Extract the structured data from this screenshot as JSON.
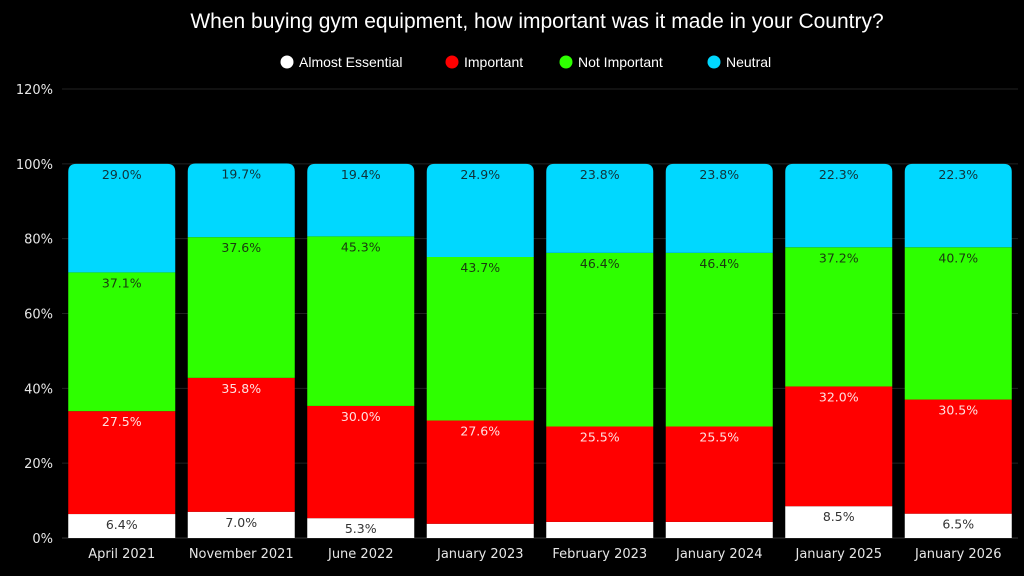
{
  "chart_data": {
    "type": "bar",
    "stacked": true,
    "title": "When buying gym equipment, how important was it made in your Country?",
    "xlabel": "",
    "ylabel": "",
    "ylim": [
      0,
      120
    ],
    "yticks": [
      0,
      20,
      40,
      60,
      80,
      100,
      120
    ],
    "ytick_labels": [
      "0%",
      "20%",
      "40%",
      "60%",
      "80%",
      "100%",
      "120%"
    ],
    "grid": true,
    "legend_position": "top-center",
    "categories": [
      "April 2021",
      "November 2021",
      "June 2022",
      "January 2023",
      "February 2023",
      "January 2024",
      "January 2025",
      "January 2026"
    ],
    "series": [
      {
        "name": "Almost Essential",
        "color": "#ffffff",
        "label_color": "#333333",
        "values": [
          6.4,
          7.0,
          5.3,
          3.8,
          4.3,
          4.3,
          8.5,
          6.5
        ],
        "labels": [
          "6.4%",
          "7.0%",
          "5.3%",
          "",
          "",
          "",
          "8.5%",
          "6.5%"
        ]
      },
      {
        "name": "Important",
        "color": "#ff0000",
        "label_color": "#ffe0e0",
        "values": [
          27.5,
          35.8,
          30.0,
          27.6,
          25.5,
          25.5,
          32.0,
          30.5
        ],
        "labels": [
          "27.5%",
          "35.8%",
          "30.0%",
          "27.6%",
          "25.5%",
          "25.5%",
          "32.0%",
          "30.5%"
        ]
      },
      {
        "name": "Not Important",
        "color": "#2eff00",
        "label_color": "#1a3a10",
        "values": [
          37.1,
          37.6,
          45.3,
          43.7,
          46.4,
          46.4,
          37.2,
          40.7
        ],
        "labels": [
          "37.1%",
          "37.6%",
          "45.3%",
          "43.7%",
          "46.4%",
          "46.4%",
          "37.2%",
          "40.7%"
        ]
      },
      {
        "name": "Neutral",
        "color": "#00d8ff",
        "label_color": "#10333a",
        "values": [
          29.0,
          19.7,
          19.4,
          24.9,
          23.8,
          23.8,
          22.3,
          22.3
        ],
        "labels": [
          "29.0%",
          "19.7%",
          "19.4%",
          "24.9%",
          "23.8%",
          "23.8%",
          "22.3%",
          "22.3%"
        ]
      }
    ]
  }
}
